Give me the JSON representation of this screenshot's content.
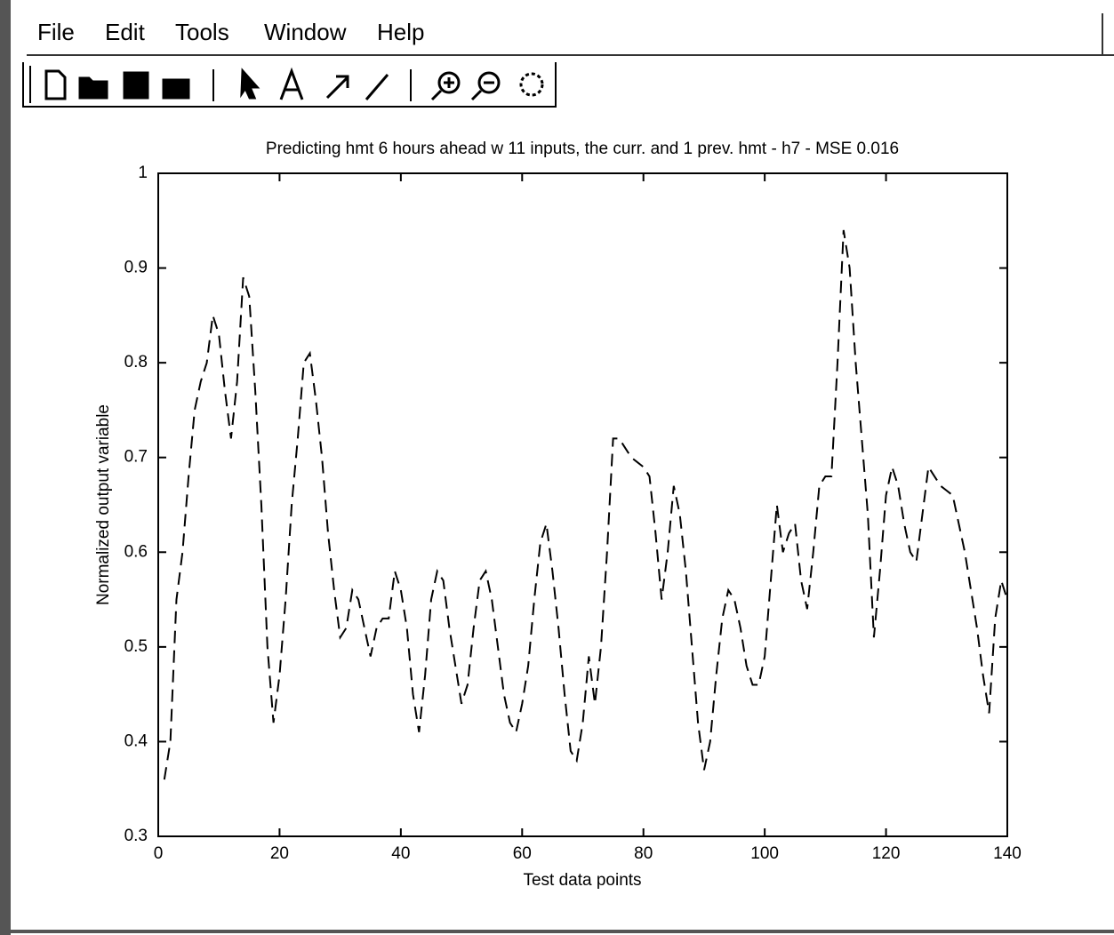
{
  "menu": {
    "items": [
      "File",
      "Edit",
      "Tools",
      "Window",
      "Help"
    ]
  },
  "chart_data": {
    "type": "line",
    "title": "Predicting hmt 6 hours ahead w 11 inputs, the curr. and 1 prev. hmt - h7 - MSE 0.016",
    "x_label": "Test data points",
    "y_label": "Normalized output variable",
    "xlim": [
      0,
      140
    ],
    "xticks": [
      0,
      20,
      40,
      60,
      80,
      100,
      120,
      140
    ],
    "ylim": [
      0.3,
      1
    ],
    "yticks": [
      0.3,
      0.4,
      0.5,
      0.6,
      0.7,
      0.8,
      0.9,
      1
    ],
    "grid": false,
    "color": "#000000",
    "dashed": true,
    "x": [
      1,
      2,
      3,
      4,
      5,
      6,
      7,
      8,
      9,
      10,
      11,
      12,
      13,
      14,
      15,
      16,
      17,
      18,
      19,
      20,
      21,
      22,
      23,
      24,
      25,
      26,
      27,
      28,
      29,
      30,
      31,
      32,
      33,
      34,
      35,
      36,
      37,
      38,
      39,
      40,
      41,
      42,
      43,
      44,
      45,
      46,
      47,
      48,
      49,
      50,
      51,
      52,
      53,
      54,
      55,
      56,
      57,
      58,
      59,
      60,
      61,
      62,
      63,
      64,
      65,
      66,
      67,
      68,
      69,
      70,
      71,
      72,
      73,
      74,
      75,
      76,
      77,
      78,
      79,
      80,
      81,
      82,
      83,
      84,
      85,
      86,
      87,
      88,
      89,
      90,
      91,
      92,
      93,
      94,
      95,
      96,
      97,
      98,
      99,
      100,
      101,
      102,
      103,
      104,
      105,
      106,
      107,
      108,
      109,
      110,
      111,
      112,
      113,
      114,
      115,
      116,
      117,
      118,
      119,
      120,
      121,
      122,
      123,
      124,
      125,
      126,
      127,
      128,
      129,
      130,
      131,
      132,
      133,
      134,
      135,
      136,
      137,
      138,
      139,
      140
    ],
    "values": [
      0.36,
      0.4,
      0.55,
      0.6,
      0.68,
      0.75,
      0.78,
      0.8,
      0.85,
      0.83,
      0.77,
      0.72,
      0.78,
      0.89,
      0.87,
      0.77,
      0.65,
      0.5,
      0.42,
      0.47,
      0.55,
      0.65,
      0.72,
      0.8,
      0.81,
      0.76,
      0.7,
      0.62,
      0.56,
      0.51,
      0.52,
      0.56,
      0.55,
      0.52,
      0.49,
      0.52,
      0.53,
      0.53,
      0.58,
      0.56,
      0.52,
      0.45,
      0.41,
      0.47,
      0.55,
      0.58,
      0.57,
      0.52,
      0.48,
      0.44,
      0.46,
      0.52,
      0.57,
      0.58,
      0.55,
      0.5,
      0.45,
      0.42,
      0.41,
      0.44,
      0.48,
      0.55,
      0.61,
      0.63,
      0.58,
      0.52,
      0.45,
      0.39,
      0.38,
      0.42,
      0.49,
      0.44,
      0.5,
      0.6,
      0.72,
      0.72,
      0.71,
      0.7,
      0.695,
      0.69,
      0.68,
      0.62,
      0.55,
      0.6,
      0.67,
      0.64,
      0.58,
      0.5,
      0.42,
      0.37,
      0.4,
      0.47,
      0.53,
      0.56,
      0.55,
      0.52,
      0.48,
      0.46,
      0.46,
      0.49,
      0.57,
      0.65,
      0.6,
      0.62,
      0.63,
      0.57,
      0.54,
      0.6,
      0.67,
      0.68,
      0.68,
      0.8,
      0.94,
      0.9,
      0.8,
      0.72,
      0.64,
      0.51,
      0.58,
      0.66,
      0.69,
      0.67,
      0.63,
      0.6,
      0.59,
      0.64,
      0.69,
      0.68,
      0.67,
      0.665,
      0.66,
      0.63,
      0.6,
      0.56,
      0.52,
      0.47,
      0.43,
      0.53,
      0.57,
      0.55
    ]
  }
}
